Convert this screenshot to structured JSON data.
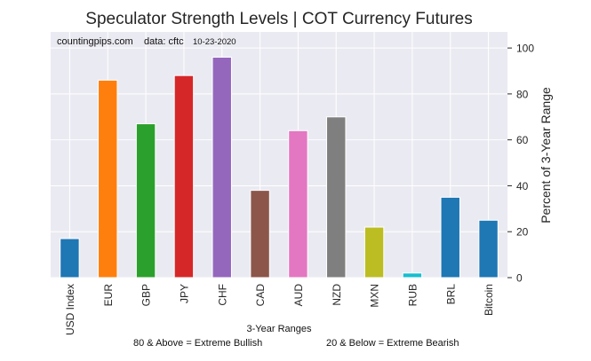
{
  "chart_data": {
    "type": "bar",
    "title": "Speculator Strength Levels | COT Currency Futures",
    "source_note": "countingpips.com",
    "data_note": "data: cftc",
    "date_note": "10-23-2020",
    "xlabel": "3-Year Ranges",
    "ylabel": "Percent of 3-Year Range",
    "ylim": [
      0,
      107
    ],
    "yticks": [
      0,
      20,
      40,
      60,
      80,
      100
    ],
    "y_axis_side": "right",
    "grid": true,
    "categories": [
      "USD Index",
      "EUR",
      "GBP",
      "JPY",
      "CHF",
      "CAD",
      "AUD",
      "NZD",
      "MXN",
      "RUB",
      "BRL",
      "Bitcoin"
    ],
    "values": [
      17,
      86,
      67,
      88,
      96,
      38,
      64,
      70,
      22,
      2,
      35,
      25
    ],
    "colors": [
      "#1f77b4",
      "#ff7f0e",
      "#2ca02c",
      "#d62728",
      "#9467bd",
      "#8c564b",
      "#e377c2",
      "#7f7f7f",
      "#bcbd22",
      "#17becf",
      "#1f77b4",
      "#1f77b4"
    ],
    "background": "#eaeaf2",
    "footnote_left": "80 & Above = Extreme Bullish",
    "footnote_right": "20 & Below = Extreme Bearish"
  }
}
